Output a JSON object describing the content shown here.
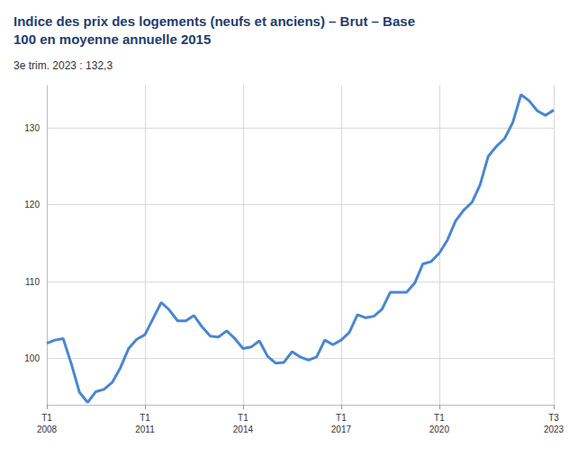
{
  "chart_data": {
    "type": "line",
    "title": "Indice des prix des logements (neufs et anciens) – Brut – Base 100 en moyenne annuelle 2015",
    "subtitle": "3e trim. 2023 : 132,3",
    "categories": [
      "T1\n2008",
      null,
      null,
      null,
      null,
      null,
      null,
      null,
      null,
      null,
      null,
      null,
      "T1\n2011",
      null,
      null,
      null,
      null,
      null,
      null,
      null,
      null,
      null,
      null,
      null,
      "T1\n2014",
      null,
      null,
      null,
      null,
      null,
      null,
      null,
      null,
      null,
      null,
      null,
      "T1\n2017",
      null,
      null,
      null,
      null,
      null,
      null,
      null,
      null,
      null,
      null,
      null,
      "T1\n2020",
      null,
      null,
      null,
      null,
      null,
      null,
      null,
      null,
      null,
      null,
      null,
      null,
      null,
      "T3\n2023"
    ],
    "values": [
      102.0,
      102.4,
      102.6,
      99.3,
      95.6,
      94.3,
      95.7,
      96.0,
      96.9,
      98.8,
      101.3,
      102.5,
      103.1,
      105.2,
      107.3,
      106.3,
      104.9,
      104.9,
      105.6,
      104.1,
      102.9,
      102.8,
      103.6,
      102.6,
      101.3,
      101.5,
      102.3,
      100.3,
      99.4,
      99.5,
      100.9,
      100.2,
      99.8,
      100.2,
      102.4,
      101.8,
      102.4,
      103.4,
      105.7,
      105.3,
      105.5,
      106.4,
      108.6,
      108.6,
      108.6,
      109.8,
      112.3,
      112.6,
      113.7,
      115.4,
      117.9,
      119.3,
      120.3,
      122.6,
      126.3,
      127.6,
      128.6,
      130.7,
      134.3,
      133.5,
      132.2,
      131.6,
      132.3
    ],
    "color": "#4a86d0",
    "ylim": [
      94,
      135.5
    ],
    "yticks": [
      100,
      110,
      120,
      130
    ],
    "grid": true
  }
}
